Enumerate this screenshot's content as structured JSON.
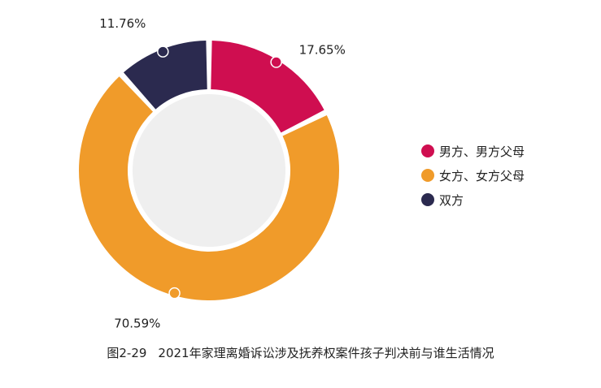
{
  "chart_data": {
    "type": "pie",
    "title": "",
    "categories": [
      "男方、男方父母",
      "女方、女方父母",
      "双方"
    ],
    "values": [
      17.65,
      70.59,
      11.76
    ],
    "value_labels": [
      "17.65%",
      "70.59%",
      "11.76%"
    ],
    "colors": [
      "#cf0e50",
      "#f09b2a",
      "#2b2a4f"
    ],
    "center_color": "#efefef",
    "legend_position": "right"
  },
  "caption": {
    "figure_number": "图2-29",
    "text": "2021年家理离婚诉讼涉及抚养权案件孩子判决前与谁生活情况"
  }
}
